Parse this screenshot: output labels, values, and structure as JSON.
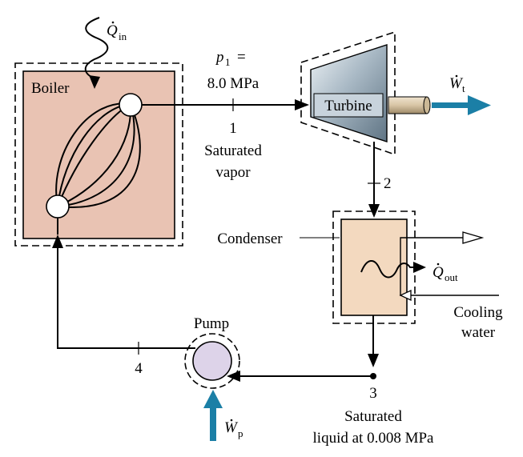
{
  "diagram": {
    "heat_in": {
      "symbol": "Q",
      "subscript": "in"
    },
    "boiler": {
      "label": "Boiler"
    },
    "state1": {
      "pressure_symbol": "p",
      "pressure_subscript": "1",
      "equals": "=",
      "pressure_value": "8.0 MPa",
      "number": "1",
      "description_line1": "Saturated",
      "description_line2": "vapor"
    },
    "turbine": {
      "label": "Turbine"
    },
    "work_turbine": {
      "symbol": "W",
      "subscript": "t"
    },
    "state2": {
      "number": "2"
    },
    "condenser": {
      "label": "Condenser"
    },
    "heat_out": {
      "symbol": "Q",
      "subscript": "out"
    },
    "cooling_water": {
      "line1": "Cooling",
      "line2": "water"
    },
    "pump": {
      "label": "Pump"
    },
    "state3": {
      "number": "3",
      "description_line1": "Saturated",
      "description_line2": "liquid at 0.008 MPa"
    },
    "state4": {
      "number": "4"
    },
    "work_pump": {
      "symbol": "W",
      "subscript": "p"
    },
    "colors": {
      "boiler_fill": "#e9c3b3",
      "condenser_fill": "#f3d9bf",
      "pump_fill": "#ddd3e9",
      "work_arrow": "#1b7fa6",
      "turbine_shaft": "#d8c5a5"
    }
  }
}
